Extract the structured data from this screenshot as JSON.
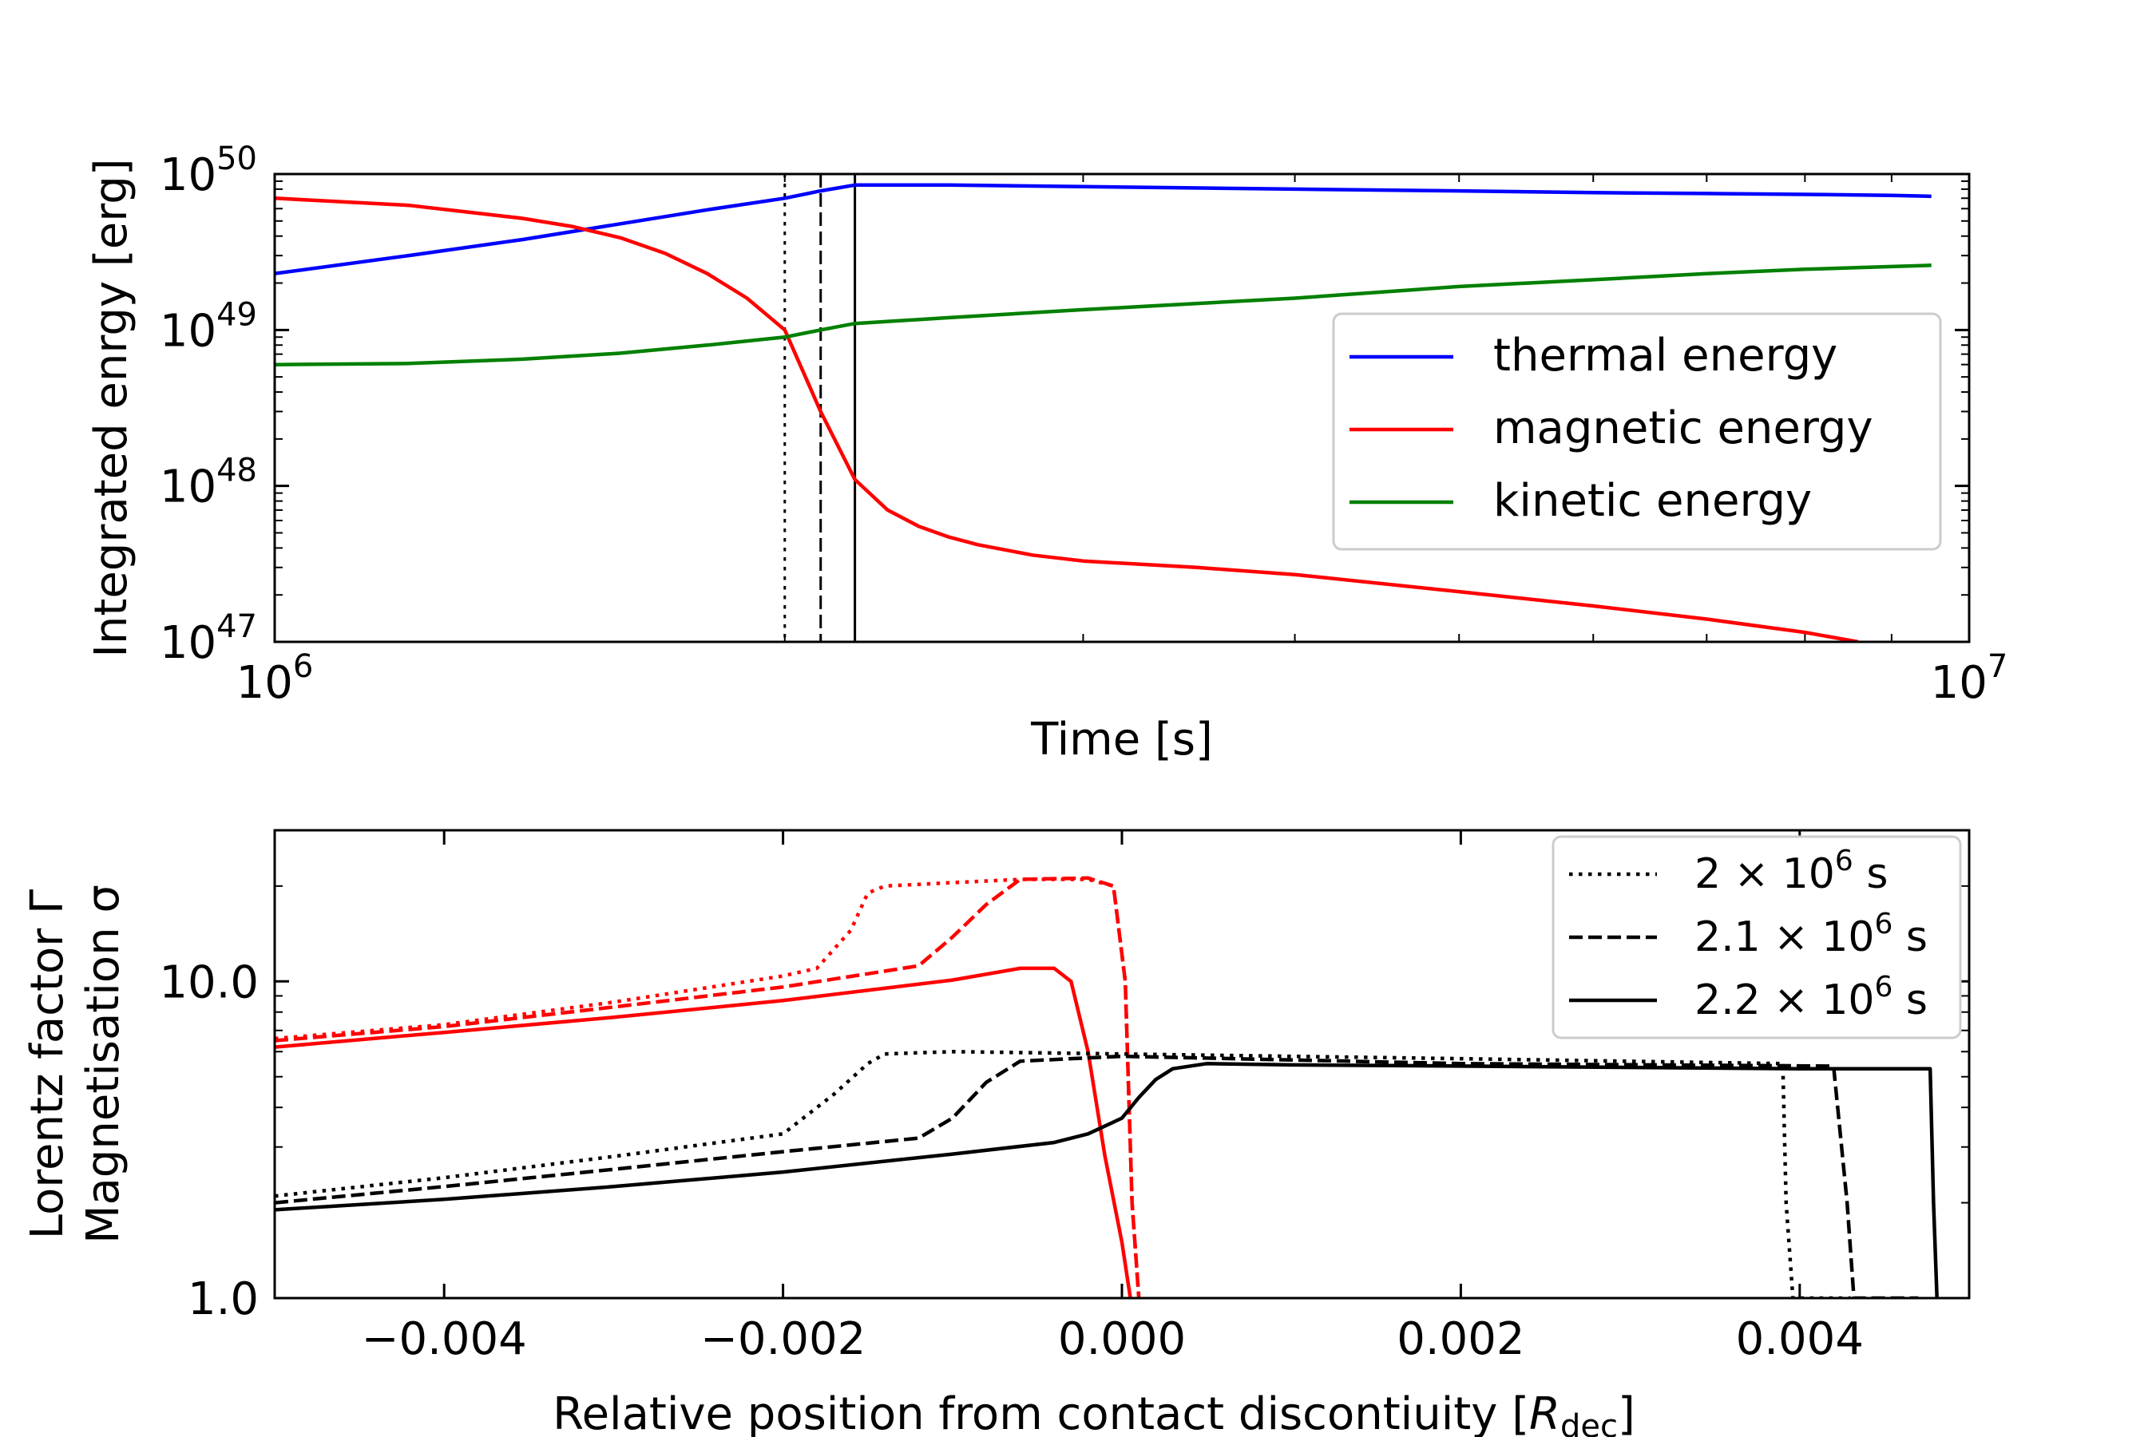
{
  "chart_data": [
    {
      "type": "line",
      "xscale": "log",
      "yscale": "log",
      "xlim": [
        1000000,
        10000000
      ],
      "ylim": [
        1e+47,
        1e+50
      ],
      "xlabel": "Time [s]",
      "ylabel": "Integrated enrgy [erg]",
      "xticks": [
        {
          "value": 1000000,
          "base": "10",
          "exp": "6"
        },
        {
          "value": 10000000,
          "base": "10",
          "exp": "7"
        }
      ],
      "yticks": [
        {
          "value": 1e+47,
          "base": "10",
          "exp": "47"
        },
        {
          "value": 1e+48,
          "base": "10",
          "exp": "48"
        },
        {
          "value": 1e+49,
          "base": "10",
          "exp": "49"
        },
        {
          "value": 1e+50,
          "base": "10",
          "exp": "50"
        }
      ],
      "vlines": [
        {
          "x": 2000000,
          "style": "dotted"
        },
        {
          "x": 2100000,
          "style": "dashed"
        },
        {
          "x": 2200000,
          "style": "solid"
        }
      ],
      "series": [
        {
          "name": "thermal energy",
          "color": "#0000ff",
          "x": [
            1000000,
            1200000,
            1400000,
            1600000,
            1800000,
            2000000,
            2100000,
            2200000,
            2300000,
            2500000,
            3000000,
            4000000,
            5000000,
            6000000,
            7000000,
            8000000,
            9000000,
            9500000
          ],
          "y": [
            2.3e+49,
            3e+49,
            3.8e+49,
            4.8e+49,
            5.9e+49,
            7e+49,
            7.8e+49,
            8.5e+49,
            8.5e+49,
            8.5e+49,
            8.3e+49,
            8e+49,
            7.8e+49,
            7.6e+49,
            7.5e+49,
            7.4e+49,
            7.3e+49,
            7.2e+49
          ]
        },
        {
          "name": "magnetic energy",
          "color": "#ff0000",
          "x": [
            1000000,
            1200000,
            1400000,
            1500000,
            1600000,
            1700000,
            1800000,
            1900000,
            2000000,
            2100000,
            2200000,
            2300000,
            2400000,
            2500000,
            2600000,
            2800000,
            3000000,
            3500000,
            4000000,
            5000000,
            6000000,
            7000000,
            8000000,
            8600000
          ],
          "y": [
            7e+49,
            6.3e+49,
            5.2e+49,
            4.6e+49,
            3.9e+49,
            3.1e+49,
            2.3e+49,
            1.6e+49,
            1e+49,
            3e+48,
            1.1e+48,
            7e+47,
            5.5e+47,
            4.7e+47,
            4.2e+47,
            3.6e+47,
            3.3e+47,
            3e+47,
            2.7e+47,
            2.1e+47,
            1.7e+47,
            1.4e+47,
            1.15e+47,
            1e+47
          ]
        },
        {
          "name": "kinetic energy",
          "color": "#008000",
          "x": [
            1000000,
            1200000,
            1400000,
            1600000,
            1800000,
            2000000,
            2100000,
            2200000,
            2500000,
            3000000,
            4000000,
            5000000,
            6000000,
            7000000,
            8000000,
            9000000,
            9500000
          ],
          "y": [
            6e+48,
            6.1e+48,
            6.5e+48,
            7.1e+48,
            8e+48,
            9e+48,
            1e+49,
            1.1e+49,
            1.2e+49,
            1.35e+49,
            1.6e+49,
            1.9e+49,
            2.1e+49,
            2.3e+49,
            2.45e+49,
            2.55e+49,
            2.6e+49
          ]
        }
      ],
      "legend": {
        "position": "right"
      }
    },
    {
      "type": "line",
      "xscale": "linear",
      "yscale": "log",
      "xlim": [
        -0.005,
        0.005
      ],
      "ylim": [
        1.0,
        30.0
      ],
      "xlabel_main": "Relative position from contact discontiuity [",
      "xlabel_symbol": "R",
      "xlabel_sub": "dec",
      "xlabel_end": "]",
      "ylabel_line1": "Lorentz factor Γ",
      "ylabel_line2": "Magnetisation σ",
      "xticks": [
        {
          "value": -0.004,
          "label": "−0.004"
        },
        {
          "value": -0.002,
          "label": "−0.002"
        },
        {
          "value": 0.0,
          "label": "0.000"
        },
        {
          "value": 0.002,
          "label": "0.002"
        },
        {
          "value": 0.004,
          "label": "0.004"
        }
      ],
      "yticks": [
        {
          "value": 1.0,
          "label": "1.0"
        },
        {
          "value": 10.0,
          "label": "10.0"
        }
      ],
      "legend": {
        "position": "top-right",
        "entries": [
          {
            "style": "dotted",
            "prefix": "2 × 10",
            "exp": "6",
            "suffix": " s"
          },
          {
            "style": "dashed",
            "prefix": "2.1 × 10",
            "exp": "6",
            "suffix": " s"
          },
          {
            "style": "solid",
            "prefix": "2.2 × 10",
            "exp": "6",
            "suffix": " s"
          }
        ]
      },
      "series": [
        {
          "name": "sigma 2e6 s",
          "quantity": "Magnetisation σ",
          "color": "#ff0000",
          "style": "dotted",
          "x": [
            -0.005,
            -0.004,
            -0.003,
            -0.002,
            -0.0018,
            -0.0016,
            -0.0015,
            -0.0014,
            -0.001,
            -0.0006,
            -0.0002,
            -5e-05,
            2e-05,
            6e-05,
            0.0001
          ],
          "y": [
            6.6,
            7.3,
            8.6,
            10.4,
            11.0,
            14.5,
            19.0,
            20.0,
            20.5,
            21.0,
            21.0,
            20.0,
            10.0,
            2.0,
            1.0
          ]
        },
        {
          "name": "sigma 2.1e6 s",
          "quantity": "Magnetisation σ",
          "color": "#ff0000",
          "style": "dashed",
          "x": [
            -0.005,
            -0.004,
            -0.003,
            -0.002,
            -0.0012,
            -0.001,
            -0.0008,
            -0.0006,
            -0.0002,
            -5e-05,
            2e-05,
            6e-05,
            0.0001
          ],
          "y": [
            6.5,
            7.2,
            8.3,
            9.6,
            11.2,
            13.8,
            17.5,
            21.0,
            21.2,
            20.0,
            10.0,
            2.0,
            1.0
          ]
        },
        {
          "name": "sigma 2.2e6 s",
          "quantity": "Magnetisation σ",
          "color": "#ff0000",
          "style": "solid",
          "x": [
            -0.005,
            -0.004,
            -0.003,
            -0.002,
            -0.001,
            -0.0006,
            -0.0004,
            -0.0003,
            -0.0002,
            -0.0001,
            0.0,
            5e-05
          ],
          "y": [
            6.2,
            6.9,
            7.7,
            8.7,
            10.1,
            11.0,
            11.0,
            10.0,
            6.0,
            2.8,
            1.5,
            1.0
          ]
        },
        {
          "name": "lorentz 2e6 s",
          "quantity": "Lorentz factor Γ",
          "color": "#000000",
          "style": "dotted",
          "x": [
            -0.005,
            -0.004,
            -0.003,
            -0.002,
            -0.0017,
            -0.0015,
            -0.0014,
            -0.001,
            0.0,
            0.002,
            0.0039,
            0.00392,
            0.00396,
            0.0041,
            0.0043
          ],
          "y": [
            2.1,
            2.4,
            2.8,
            3.3,
            4.4,
            5.5,
            5.9,
            6.0,
            5.9,
            5.7,
            5.5,
            2.0,
            1.0,
            1.0,
            1.0
          ]
        },
        {
          "name": "lorentz 2.1e6 s",
          "quantity": "Lorentz factor Γ",
          "color": "#000000",
          "style": "dashed",
          "x": [
            -0.005,
            -0.004,
            -0.003,
            -0.002,
            -0.0012,
            -0.001,
            -0.0008,
            -0.0006,
            0.0,
            0.002,
            0.0042,
            0.00428,
            0.00432,
            0.0045,
            0.0047
          ],
          "y": [
            2.0,
            2.25,
            2.55,
            2.9,
            3.2,
            3.7,
            4.8,
            5.6,
            5.8,
            5.5,
            5.4,
            2.0,
            1.0,
            1.0,
            1.0
          ]
        },
        {
          "name": "lorentz 2.2e6 s",
          "quantity": "Lorentz factor Γ",
          "color": "#000000",
          "style": "solid",
          "x": [
            -0.005,
            -0.004,
            -0.003,
            -0.002,
            -0.001,
            -0.0004,
            -0.0002,
            0.0,
            0.0001,
            0.0002,
            0.0003,
            0.0005,
            0.001,
            0.002,
            0.004,
            0.00477,
            0.00479,
            0.00481
          ],
          "y": [
            1.9,
            2.05,
            2.25,
            2.5,
            2.85,
            3.1,
            3.3,
            3.7,
            4.3,
            4.9,
            5.3,
            5.5,
            5.45,
            5.4,
            5.3,
            5.3,
            2.0,
            1.0
          ]
        }
      ]
    }
  ]
}
